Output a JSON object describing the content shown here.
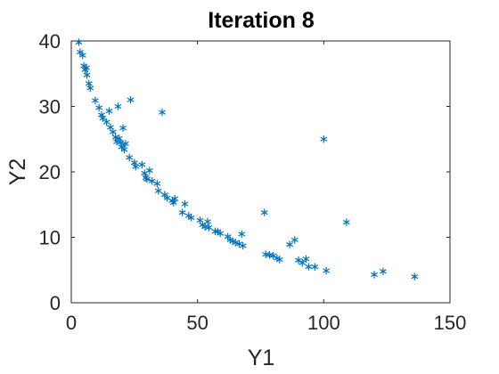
{
  "chart_data": {
    "type": "scatter",
    "title": "Iteration 8",
    "xlabel": "Y1",
    "ylabel": "Y2",
    "xlim": [
      0,
      150
    ],
    "ylim": [
      0,
      40
    ],
    "xticks": [
      "0",
      "50",
      "100",
      "150"
    ],
    "yticks": [
      "0",
      "10",
      "20",
      "30",
      "40"
    ],
    "grid": false,
    "legend": "none",
    "marker": "asterisk",
    "marker_color": "#0072BD",
    "series": [
      {
        "points": [
          [
            3,
            39.8
          ],
          [
            3.5,
            38.3
          ],
          [
            4.5,
            37.8
          ],
          [
            5,
            36.2
          ],
          [
            5.5,
            35.6
          ],
          [
            6,
            35.9
          ],
          [
            6.2,
            34.8
          ],
          [
            7,
            33.5
          ],
          [
            7.5,
            32.8
          ],
          [
            9.5,
            30.9
          ],
          [
            11,
            29.8
          ],
          [
            12,
            28.7
          ],
          [
            12.5,
            28.2
          ],
          [
            14,
            27.6
          ],
          [
            15,
            29.3
          ],
          [
            15.5,
            26.8
          ],
          [
            16.5,
            26.1
          ],
          [
            17.5,
            25.3
          ],
          [
            18,
            24.6
          ],
          [
            18.5,
            30.0
          ],
          [
            19,
            25.1
          ],
          [
            19.5,
            24.5
          ],
          [
            20,
            23.8
          ],
          [
            20.5,
            26.7
          ],
          [
            21,
            23.4
          ],
          [
            21.5,
            24.3
          ],
          [
            23,
            22.2
          ],
          [
            23.5,
            31.0
          ],
          [
            25,
            21.4
          ],
          [
            25.5,
            20.8
          ],
          [
            28,
            21.1
          ],
          [
            29,
            19.8
          ],
          [
            29.5,
            19.1
          ],
          [
            30,
            18.9
          ],
          [
            31,
            20.2
          ],
          [
            32,
            18.6
          ],
          [
            34,
            18.2
          ],
          [
            34.5,
            17.1
          ],
          [
            36,
            29.1
          ],
          [
            37,
            16.5
          ],
          [
            38,
            16.0
          ],
          [
            40,
            15.6
          ],
          [
            40.5,
            15.3
          ],
          [
            41,
            15.9
          ],
          [
            44,
            13.8
          ],
          [
            45,
            15.1
          ],
          [
            46.5,
            13.3
          ],
          [
            47.5,
            13.0
          ],
          [
            51,
            12.6
          ],
          [
            52,
            11.9
          ],
          [
            53,
            11.6
          ],
          [
            54,
            12.4
          ],
          [
            54.5,
            11.5
          ],
          [
            57,
            10.9
          ],
          [
            58,
            10.9
          ],
          [
            59,
            10.6
          ],
          [
            62,
            10.1
          ],
          [
            63,
            9.6
          ],
          [
            64,
            9.4
          ],
          [
            65,
            9.2
          ],
          [
            66.5,
            9.0
          ],
          [
            67.5,
            10.5
          ],
          [
            68,
            8.7
          ],
          [
            76.5,
            13.8
          ],
          [
            77,
            7.4
          ],
          [
            78.5,
            7.3
          ],
          [
            80,
            7.2
          ],
          [
            81.5,
            6.8
          ],
          [
            82.5,
            6.6
          ],
          [
            86.5,
            8.9
          ],
          [
            88.5,
            9.6
          ],
          [
            90,
            6.5
          ],
          [
            91.5,
            6.1
          ],
          [
            93,
            6.7
          ],
          [
            94,
            5.5
          ],
          [
            96.5,
            5.5
          ],
          [
            100,
            25.0
          ],
          [
            101,
            4.9
          ],
          [
            109,
            12.3
          ],
          [
            120,
            4.3
          ],
          [
            123.5,
            4.8
          ],
          [
            136,
            4.0
          ]
        ]
      }
    ]
  }
}
